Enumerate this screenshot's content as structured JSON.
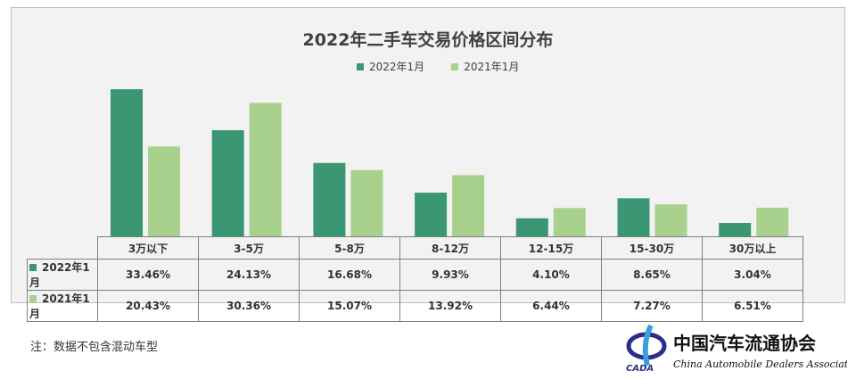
{
  "note": "注：数据不包含混动车型",
  "logo": {
    "cn": "中国汽车流通协会",
    "en": "China Automobile Dealers Association",
    "abbr": "CADA"
  },
  "colors": {
    "s2022": "#3a9673",
    "s2021": "#a9d18e"
  },
  "chart_data": {
    "type": "bar",
    "title": "2022年二手车交易价格区间分布",
    "categories": [
      "3万以下",
      "3-5万",
      "5-8万",
      "8-12万",
      "12-15万",
      "15-30万",
      "30万以上"
    ],
    "series": [
      {
        "name": "2022年1月",
        "values": [
          33.46,
          24.13,
          16.68,
          9.93,
          4.1,
          8.65,
          3.04
        ],
        "labels": [
          "33.46%",
          "24.13%",
          "16.68%",
          "9.93%",
          "4.10%",
          "8.65%",
          "3.04%"
        ]
      },
      {
        "name": "2021年1月",
        "values": [
          20.43,
          30.36,
          15.07,
          13.92,
          6.44,
          7.27,
          6.51
        ],
        "labels": [
          "20.43%",
          "30.36%",
          "15.07%",
          "13.92%",
          "6.44%",
          "7.27%",
          "6.51%"
        ]
      }
    ],
    "legend": "top",
    "grid": false,
    "data_table": true,
    "unit": "%"
  }
}
